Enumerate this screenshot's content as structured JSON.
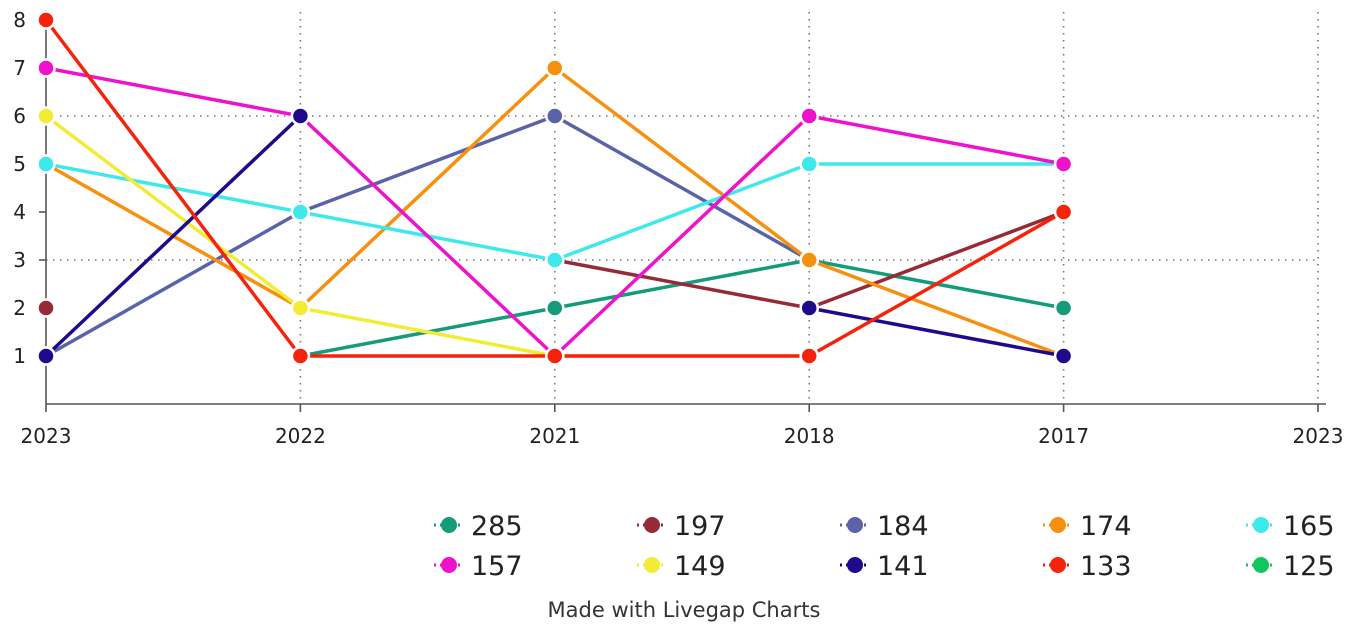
{
  "chart_data": {
    "type": "line",
    "categories": [
      "2023",
      "2022",
      "2021",
      "2018",
      "2017",
      "2023"
    ],
    "ylim": [
      0,
      8
    ],
    "yticks": [
      1,
      2,
      3,
      4,
      5,
      6,
      7,
      8
    ],
    "grid": true,
    "legend_position": "bottom",
    "series": [
      {
        "name": "285",
        "color": "#159a7a",
        "values": [
          null,
          1,
          2,
          3,
          2,
          null
        ]
      },
      {
        "name": "197",
        "color": "#962a37",
        "values": [
          2,
          null,
          3,
          2,
          4,
          null
        ]
      },
      {
        "name": "184",
        "color": "#5a62a8",
        "values": [
          1,
          4,
          6,
          3,
          null,
          null
        ]
      },
      {
        "name": "174",
        "color": "#f7900e",
        "values": [
          5,
          2,
          7,
          3,
          1,
          null
        ]
      },
      {
        "name": "165",
        "color": "#3ee9ec",
        "values": [
          5,
          4,
          3,
          5,
          5,
          null
        ]
      },
      {
        "name": "157",
        "color": "#ee12cc",
        "values": [
          7,
          6,
          1,
          6,
          5,
          null
        ]
      },
      {
        "name": "149",
        "color": "#f3ec35",
        "values": [
          6,
          2,
          1,
          1,
          null,
          null
        ]
      },
      {
        "name": "141",
        "color": "#200a8c",
        "values": [
          1,
          6,
          null,
          2,
          1,
          null
        ]
      },
      {
        "name": "133",
        "color": "#f5230c",
        "values": [
          8,
          1,
          1,
          1,
          4,
          null
        ]
      },
      {
        "name": "125",
        "color": "#13c65b",
        "values": [
          null,
          null,
          null,
          null,
          null,
          null
        ]
      }
    ]
  },
  "footer": {
    "credit": "Made with Livegap Charts"
  }
}
